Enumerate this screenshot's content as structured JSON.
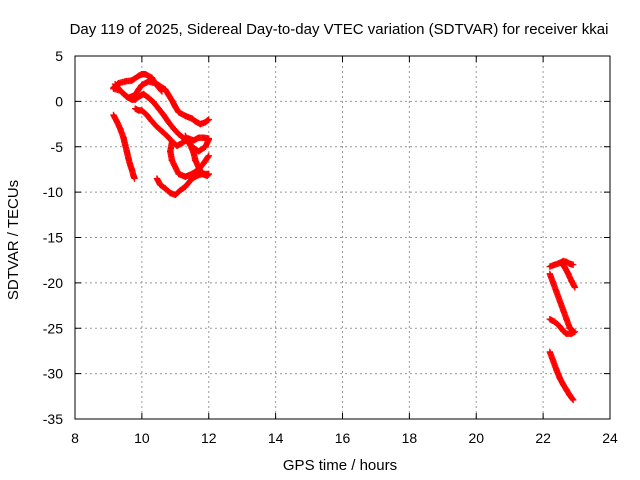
{
  "chart_data": {
    "type": "scatter",
    "title": "Day 119 of 2025, Sidereal Day-to-day VTEC variation (SDTVAR) for receiver kkai",
    "xlabel": "GPS time / hours",
    "ylabel": "SDTVAR / TECUs",
    "xlim": [
      8,
      24
    ],
    "ylim": [
      -35,
      5
    ],
    "xticks": [
      "8",
      "10",
      "12",
      "14",
      "16",
      "18",
      "20",
      "22",
      "24"
    ],
    "yticks": [
      "5",
      "0",
      "-5",
      "-10",
      "-15",
      "-20",
      "-25",
      "-30",
      "-35"
    ],
    "grid": true,
    "marker_color": "#ff0000",
    "series": [
      {
        "marker": "plus",
        "tracks": [
          [
            [
              9.15,
              1.5
            ],
            [
              9.3,
              2.0
            ],
            [
              9.5,
              2.2
            ],
            [
              9.7,
              2.3
            ],
            [
              9.9,
              2.8
            ],
            [
              10.0,
              3.0
            ],
            [
              10.1,
              3.0
            ],
            [
              10.3,
              2.6
            ],
            [
              10.4,
              2.0
            ],
            [
              10.5,
              1.8
            ],
            [
              10.7,
              1.3
            ],
            [
              10.8,
              0.7
            ],
            [
              10.9,
              0.1
            ],
            [
              11.0,
              -0.6
            ],
            [
              11.1,
              -1.2
            ],
            [
              11.3,
              -1.6
            ],
            [
              11.5,
              -1.9
            ],
            [
              11.6,
              -2.2
            ],
            [
              11.75,
              -2.5
            ],
            [
              11.9,
              -2.3
            ],
            [
              12.0,
              -2.0
            ]
          ],
          [
            [
              9.2,
              1.9
            ],
            [
              9.4,
              1.0
            ],
            [
              9.6,
              0.4
            ],
            [
              9.8,
              0.7
            ],
            [
              9.9,
              1.3
            ],
            [
              10.0,
              1.8
            ],
            [
              10.2,
              2.2
            ],
            [
              10.4,
              2.0
            ],
            [
              10.6,
              1.1
            ]
          ],
          [
            [
              9.15,
              1.4
            ],
            [
              9.35,
              1.2
            ],
            [
              9.55,
              0.5
            ],
            [
              9.7,
              0.2
            ],
            [
              9.8,
              0.2
            ],
            [
              9.9,
              0.5
            ],
            [
              10.05,
              0.8
            ],
            [
              10.2,
              0.4
            ],
            [
              10.35,
              -0.1
            ],
            [
              10.5,
              -0.8
            ],
            [
              10.65,
              -1.5
            ],
            [
              10.8,
              -2.3
            ],
            [
              10.95,
              -3.0
            ],
            [
              11.1,
              -3.6
            ],
            [
              11.3,
              -4.2
            ],
            [
              11.5,
              -5.0
            ],
            [
              11.7,
              -5.5
            ],
            [
              11.9,
              -5.0
            ],
            [
              12.0,
              -4.2
            ]
          ],
          [
            [
              9.8,
              -0.8
            ],
            [
              9.9,
              -1.0
            ],
            [
              10.0,
              -1.0
            ],
            [
              10.15,
              -1.5
            ],
            [
              10.3,
              -2.2
            ],
            [
              10.45,
              -2.8
            ],
            [
              10.6,
              -3.3
            ],
            [
              10.75,
              -3.8
            ],
            [
              10.9,
              -4.4
            ],
            [
              11.05,
              -4.9
            ],
            [
              11.2,
              -4.6
            ],
            [
              11.4,
              -4.1
            ],
            [
              11.55,
              -4.3
            ],
            [
              11.7,
              -4.0
            ],
            [
              11.85,
              -4.0
            ],
            [
              12.0,
              -4.1
            ]
          ],
          [
            [
              11.3,
              -3.8
            ],
            [
              11.45,
              -4.8
            ],
            [
              11.55,
              -5.7
            ],
            [
              11.6,
              -6.5
            ],
            [
              11.7,
              -7.3
            ],
            [
              11.8,
              -8.0
            ],
            [
              11.95,
              -8.2
            ],
            [
              12.0,
              -8.0
            ]
          ],
          [
            [
              12.0,
              -6.0
            ],
            [
              11.85,
              -6.8
            ],
            [
              11.7,
              -7.5
            ],
            [
              11.5,
              -8.0
            ],
            [
              11.3,
              -8.3
            ],
            [
              11.1,
              -8.0
            ],
            [
              10.9,
              -6.5
            ],
            [
              10.85,
              -5.5
            ],
            [
              10.9,
              -4.5
            ]
          ],
          [
            [
              10.45,
              -8.5
            ],
            [
              10.55,
              -9.2
            ],
            [
              10.7,
              -9.6
            ],
            [
              10.85,
              -10.1
            ],
            [
              11.0,
              -10.3
            ],
            [
              11.15,
              -9.8
            ],
            [
              11.3,
              -9.4
            ],
            [
              11.5,
              -8.5
            ],
            [
              11.7,
              -8.1
            ],
            [
              11.85,
              -8.0
            ],
            [
              12.0,
              -8.0
            ]
          ],
          [
            [
              9.15,
              -1.5
            ],
            [
              9.25,
              -2.2
            ],
            [
              9.35,
              -3.0
            ],
            [
              9.45,
              -4.0
            ],
            [
              9.5,
              -4.8
            ],
            [
              9.55,
              -5.5
            ],
            [
              9.6,
              -6.3
            ],
            [
              9.65,
              -7.0
            ],
            [
              9.7,
              -7.5
            ],
            [
              9.75,
              -8.2
            ],
            [
              9.78,
              -8.5
            ]
          ],
          [
            [
              22.2,
              -18.2
            ],
            [
              22.35,
              -18.0
            ],
            [
              22.5,
              -17.8
            ],
            [
              22.6,
              -17.6
            ],
            [
              22.7,
              -17.7
            ],
            [
              22.8,
              -17.9
            ],
            [
              22.9,
              -18.0
            ]
          ],
          [
            [
              22.2,
              -19.0
            ],
            [
              22.3,
              -20.0
            ],
            [
              22.4,
              -21.0
            ],
            [
              22.5,
              -22.0
            ],
            [
              22.6,
              -23.0
            ],
            [
              22.7,
              -24.0
            ],
            [
              22.8,
              -25.0
            ],
            [
              22.9,
              -25.3
            ]
          ],
          [
            [
              22.2,
              -24.0
            ],
            [
              22.35,
              -24.3
            ],
            [
              22.5,
              -24.8
            ],
            [
              22.6,
              -25.3
            ],
            [
              22.7,
              -25.6
            ],
            [
              22.85,
              -25.6
            ],
            [
              22.95,
              -25.4
            ]
          ],
          [
            [
              22.55,
              -17.8
            ],
            [
              22.65,
              -18.3
            ],
            [
              22.75,
              -19.0
            ],
            [
              22.85,
              -19.8
            ],
            [
              22.95,
              -20.5
            ]
          ],
          [
            [
              22.2,
              -27.6
            ],
            [
              22.3,
              -28.6
            ],
            [
              22.4,
              -29.6
            ],
            [
              22.5,
              -30.5
            ],
            [
              22.6,
              -31.2
            ],
            [
              22.7,
              -31.8
            ],
            [
              22.8,
              -32.4
            ],
            [
              22.9,
              -32.9
            ]
          ]
        ]
      }
    ]
  }
}
